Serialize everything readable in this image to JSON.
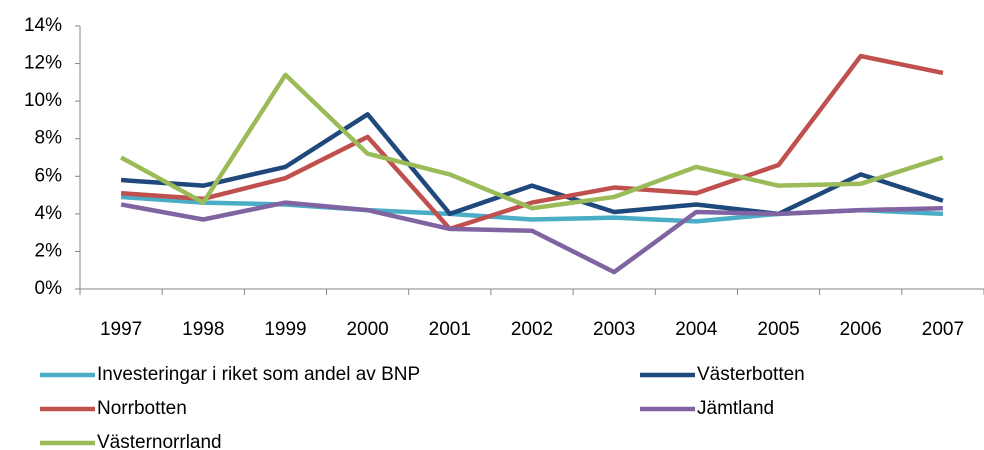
{
  "chart_data": {
    "type": "line",
    "categories": [
      "1997",
      "1998",
      "1999",
      "2000",
      "2001",
      "2002",
      "2003",
      "2004",
      "2005",
      "2006",
      "2007"
    ],
    "ylim": [
      0,
      14
    ],
    "yticks": [
      {
        "value": 0,
        "label": "0%"
      },
      {
        "value": 2,
        "label": "2%"
      },
      {
        "value": 4,
        "label": "4%"
      },
      {
        "value": 6,
        "label": "6%"
      },
      {
        "value": 8,
        "label": "8%"
      },
      {
        "value": 10,
        "label": "10%"
      },
      {
        "value": 12,
        "label": "12%"
      },
      {
        "value": 14,
        "label": "14%"
      }
    ],
    "grid": false,
    "series": [
      {
        "name": "Investeringar i riket som andel av BNP",
        "color": "#4bacc6",
        "values": [
          4.9,
          4.6,
          4.5,
          4.2,
          4.0,
          3.7,
          3.8,
          3.6,
          4.0,
          4.2,
          4.0
        ]
      },
      {
        "name": "Västerbotten",
        "color": "#1f497d",
        "values": [
          5.8,
          5.5,
          6.5,
          9.3,
          4.0,
          5.5,
          4.1,
          4.5,
          4.0,
          6.1,
          4.7
        ]
      },
      {
        "name": "Norrbotten",
        "color": "#c0504d",
        "values": [
          5.1,
          4.8,
          5.9,
          8.1,
          3.2,
          4.6,
          5.4,
          5.1,
          6.6,
          12.4,
          11.5
        ]
      },
      {
        "name": "Jämtland",
        "color": "#8064a2",
        "values": [
          4.5,
          3.7,
          4.6,
          4.2,
          3.2,
          3.1,
          0.9,
          4.1,
          4.0,
          4.2,
          4.3
        ]
      },
      {
        "name": "Västernorrland",
        "color": "#9bbb59",
        "values": [
          7.0,
          4.6,
          11.4,
          7.2,
          6.1,
          4.3,
          4.9,
          6.5,
          5.5,
          5.6,
          7.0
        ]
      }
    ]
  }
}
